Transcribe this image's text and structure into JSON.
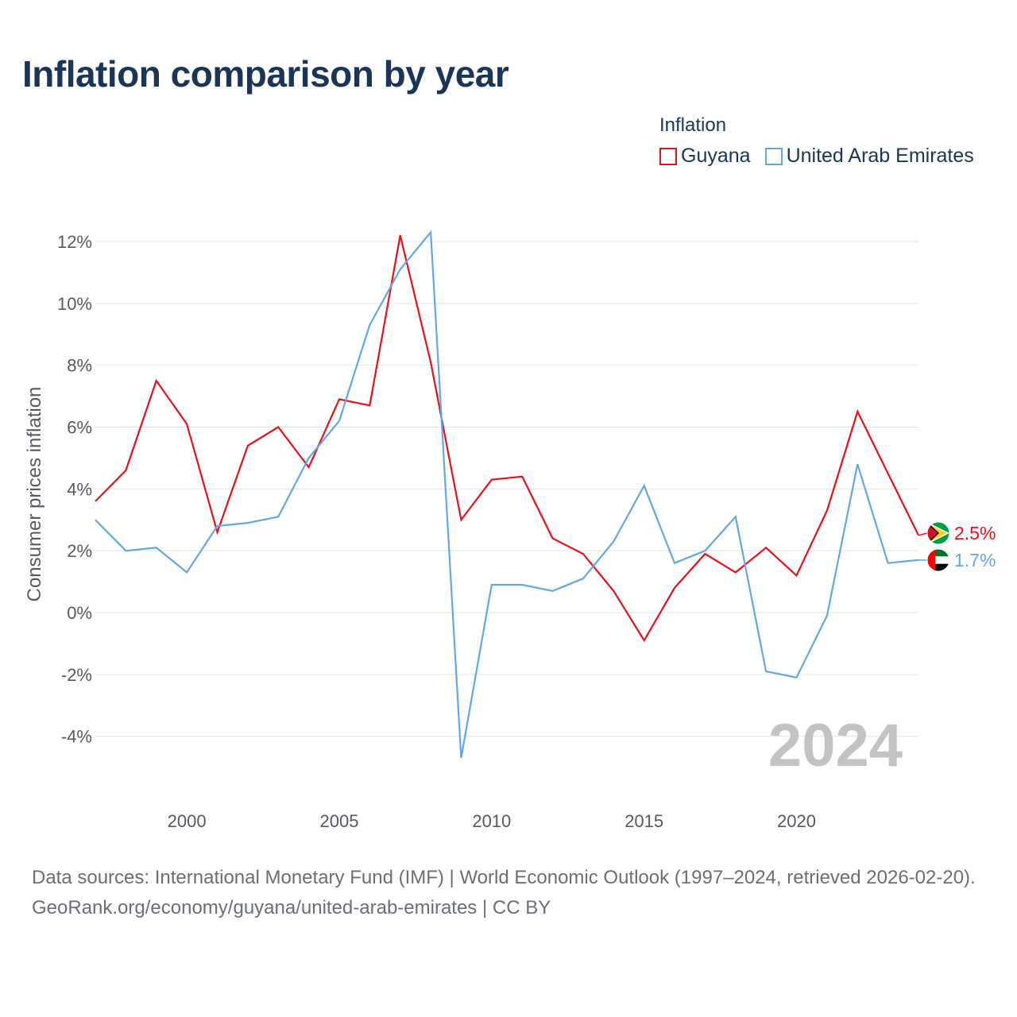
{
  "title": "Inflation comparison by year",
  "legend": {
    "title": "Inflation",
    "items": [
      {
        "label": "Guyana",
        "color": "#e8111b"
      },
      {
        "label": "United Arab Emirates",
        "color": "#62a8e5"
      }
    ]
  },
  "watermark_year": "2024",
  "footer": {
    "line1": "Data sources: International Monetary Fund (IMF) | World Economic Outlook (1997–2024, retrieved 2026-02-20).",
    "line2": "GeoRank.org/economy/guyana/united-arab-emirates | CC BY"
  },
  "chart_data": {
    "type": "line",
    "title": "Inflation comparison by year",
    "xlabel": "",
    "ylabel": "Consumer prices inflation",
    "x": [
      1997,
      1998,
      1999,
      2000,
      2001,
      2002,
      2003,
      2004,
      2005,
      2006,
      2007,
      2008,
      2009,
      2010,
      2011,
      2012,
      2013,
      2014,
      2015,
      2016,
      2017,
      2018,
      2019,
      2020,
      2021,
      2022,
      2023,
      2024
    ],
    "xlim": [
      1997,
      2024
    ],
    "ylim": [
      -5.5,
      12.5
    ],
    "x_ticks": [
      2000,
      2005,
      2010,
      2015,
      2020
    ],
    "x_tick_labels": [
      "2000",
      "2005",
      "2010",
      "2015",
      "2020"
    ],
    "y_ticks": [
      -4,
      -2,
      0,
      2,
      4,
      6,
      8,
      10,
      12
    ],
    "y_tick_labels": [
      "-4%",
      "-2%",
      "0%",
      "2%",
      "4%",
      "6%",
      "8%",
      "10%",
      "12%"
    ],
    "grid": true,
    "legend_position": "top-right",
    "series": [
      {
        "name": "Guyana",
        "color": "#e8111b",
        "end_label": "2.5%",
        "values": [
          3.6,
          4.6,
          7.5,
          6.1,
          2.6,
          5.4,
          6.0,
          4.7,
          6.9,
          6.7,
          12.2,
          8.1,
          3.0,
          4.3,
          4.4,
          2.4,
          1.9,
          0.7,
          -0.9,
          0.8,
          1.9,
          1.3,
          2.1,
          1.2,
          3.3,
          6.5,
          4.5,
          2.5
        ]
      },
      {
        "name": "United Arab Emirates",
        "color": "#62a8e5",
        "end_label": "1.7%",
        "values": [
          3.0,
          2.0,
          2.1,
          1.3,
          2.8,
          2.9,
          3.1,
          5.0,
          6.2,
          9.3,
          11.1,
          12.3,
          -4.7,
          0.9,
          0.9,
          0.7,
          1.1,
          2.3,
          4.1,
          1.6,
          2.0,
          3.1,
          -1.9,
          -2.1,
          -0.1,
          4.8,
          1.6,
          1.7
        ]
      }
    ]
  }
}
